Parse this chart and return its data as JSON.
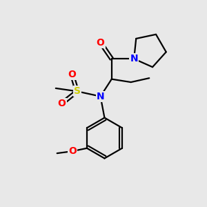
{
  "background_color": "#e8e8e8",
  "atom_colors": {
    "C": "#000000",
    "N": "#0000ff",
    "O": "#ff0000",
    "S": "#cccc00"
  },
  "bond_color": "#000000",
  "bond_width": 1.6,
  "figsize": [
    3.0,
    3.0
  ],
  "dpi": 100,
  "xlim": [
    0,
    10
  ],
  "ylim": [
    0,
    10
  ]
}
